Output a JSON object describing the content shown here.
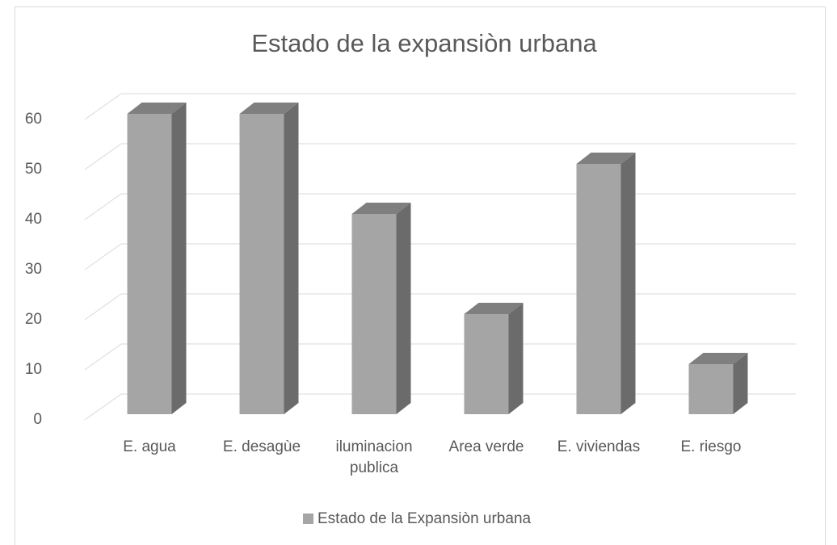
{
  "chart_data": {
    "type": "bar3d",
    "title": "Estado de la expansiòn urbana",
    "categories": [
      "E. agua",
      "E. desagùe",
      "iluminacion publica",
      "Area verde",
      "E. viviendas",
      "E. riesgo"
    ],
    "series": [
      {
        "name": "Estado de la Expansiòn urbana",
        "color": "#a5a5a5",
        "values": [
          60,
          60,
          40,
          20,
          50,
          10
        ]
      }
    ],
    "ylim": [
      0,
      60
    ],
    "yticks": [
      0,
      10,
      20,
      30,
      40,
      50,
      60
    ],
    "grid": true,
    "legend": "bottom"
  }
}
